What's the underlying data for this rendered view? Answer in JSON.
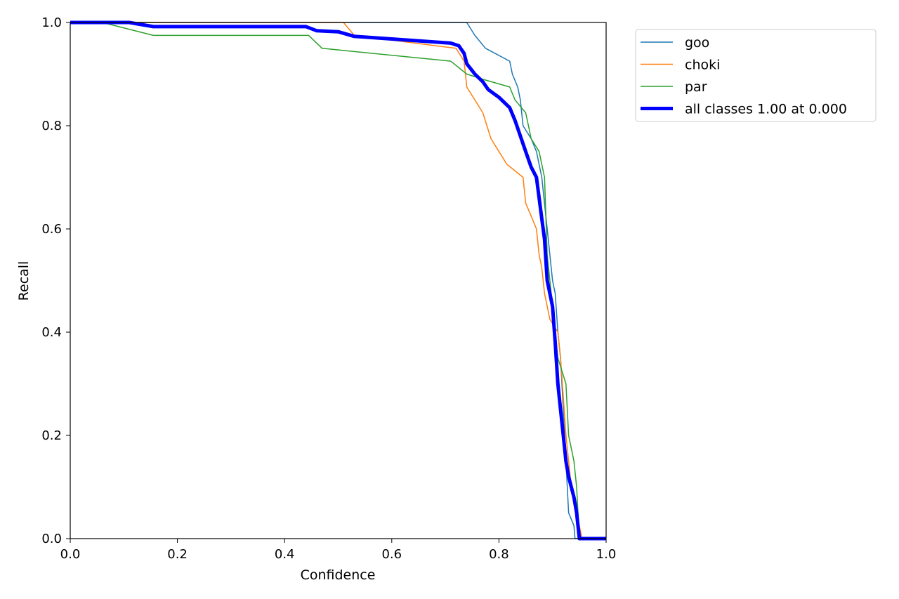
{
  "chart_data": {
    "type": "line",
    "title": "",
    "xlabel": "Confidence",
    "ylabel": "Recall",
    "xlim": [
      0.0,
      1.0
    ],
    "ylim": [
      0.0,
      1.0
    ],
    "xticks": [
      "0.0",
      "0.2",
      "0.4",
      "0.6",
      "0.8",
      "1.0"
    ],
    "yticks": [
      "0.0",
      "0.2",
      "0.4",
      "0.6",
      "0.8",
      "1.0"
    ],
    "grid": false,
    "legend_position": "outside-top-right",
    "series": [
      {
        "name": "goo",
        "color": "#1f77b4",
        "width": "thin",
        "points": [
          [
            0.0,
            1.0
          ],
          [
            0.74,
            1.0
          ],
          [
            0.755,
            0.975
          ],
          [
            0.775,
            0.95
          ],
          [
            0.82,
            0.925
          ],
          [
            0.825,
            0.9
          ],
          [
            0.835,
            0.875
          ],
          [
            0.84,
            0.85
          ],
          [
            0.845,
            0.8
          ],
          [
            0.86,
            0.775
          ],
          [
            0.87,
            0.75
          ],
          [
            0.88,
            0.7
          ],
          [
            0.89,
            0.6
          ],
          [
            0.895,
            0.55
          ],
          [
            0.9,
            0.5
          ],
          [
            0.905,
            0.475
          ],
          [
            0.91,
            0.4
          ],
          [
            0.915,
            0.35
          ],
          [
            0.92,
            0.25
          ],
          [
            0.925,
            0.15
          ],
          [
            0.93,
            0.05
          ],
          [
            0.94,
            0.025
          ],
          [
            0.942,
            0.0
          ],
          [
            1.0,
            0.0
          ]
        ]
      },
      {
        "name": "choki",
        "color": "#ff7f0e",
        "width": "thin",
        "points": [
          [
            0.0,
            1.0
          ],
          [
            0.51,
            1.0
          ],
          [
            0.53,
            0.975
          ],
          [
            0.72,
            0.95
          ],
          [
            0.735,
            0.925
          ],
          [
            0.74,
            0.875
          ],
          [
            0.77,
            0.825
          ],
          [
            0.785,
            0.775
          ],
          [
            0.8,
            0.75
          ],
          [
            0.815,
            0.725
          ],
          [
            0.845,
            0.7
          ],
          [
            0.85,
            0.65
          ],
          [
            0.86,
            0.625
          ],
          [
            0.87,
            0.6
          ],
          [
            0.875,
            0.55
          ],
          [
            0.88,
            0.525
          ],
          [
            0.885,
            0.475
          ],
          [
            0.895,
            0.425
          ],
          [
            0.91,
            0.4
          ],
          [
            0.915,
            0.35
          ],
          [
            0.92,
            0.275
          ],
          [
            0.925,
            0.2
          ],
          [
            0.935,
            0.1
          ],
          [
            0.945,
            0.05
          ],
          [
            0.95,
            0.025
          ],
          [
            0.955,
            0.0
          ],
          [
            1.0,
            0.0
          ]
        ]
      },
      {
        "name": "par",
        "color": "#2ca02c",
        "width": "thin",
        "points": [
          [
            0.0,
            1.0
          ],
          [
            0.06,
            1.0
          ],
          [
            0.155,
            0.975
          ],
          [
            0.445,
            0.975
          ],
          [
            0.47,
            0.95
          ],
          [
            0.71,
            0.925
          ],
          [
            0.74,
            0.9
          ],
          [
            0.77,
            0.89
          ],
          [
            0.82,
            0.875
          ],
          [
            0.83,
            0.85
          ],
          [
            0.85,
            0.825
          ],
          [
            0.855,
            0.8
          ],
          [
            0.86,
            0.775
          ],
          [
            0.875,
            0.75
          ],
          [
            0.88,
            0.725
          ],
          [
            0.885,
            0.7
          ],
          [
            0.89,
            0.55
          ],
          [
            0.9,
            0.45
          ],
          [
            0.91,
            0.35
          ],
          [
            0.925,
            0.3
          ],
          [
            0.93,
            0.2
          ],
          [
            0.94,
            0.15
          ],
          [
            0.945,
            0.1
          ],
          [
            0.95,
            0.0
          ],
          [
            1.0,
            0.0
          ]
        ]
      },
      {
        "name": "all classes 1.00 at 0.000",
        "color": "#0000ff",
        "width": "thick",
        "points": [
          [
            0.0,
            1.0
          ],
          [
            0.11,
            1.0
          ],
          [
            0.155,
            0.992
          ],
          [
            0.44,
            0.992
          ],
          [
            0.46,
            0.984
          ],
          [
            0.5,
            0.982
          ],
          [
            0.53,
            0.973
          ],
          [
            0.6,
            0.968
          ],
          [
            0.71,
            0.96
          ],
          [
            0.725,
            0.955
          ],
          [
            0.735,
            0.94
          ],
          [
            0.74,
            0.92
          ],
          [
            0.755,
            0.9
          ],
          [
            0.77,
            0.885
          ],
          [
            0.78,
            0.87
          ],
          [
            0.8,
            0.855
          ],
          [
            0.82,
            0.835
          ],
          [
            0.83,
            0.81
          ],
          [
            0.84,
            0.78
          ],
          [
            0.85,
            0.75
          ],
          [
            0.86,
            0.72
          ],
          [
            0.87,
            0.7
          ],
          [
            0.875,
            0.66
          ],
          [
            0.88,
            0.62
          ],
          [
            0.885,
            0.58
          ],
          [
            0.89,
            0.5
          ],
          [
            0.9,
            0.45
          ],
          [
            0.905,
            0.38
          ],
          [
            0.91,
            0.3
          ],
          [
            0.915,
            0.25
          ],
          [
            0.92,
            0.2
          ],
          [
            0.925,
            0.15
          ],
          [
            0.93,
            0.12
          ],
          [
            0.935,
            0.1
          ],
          [
            0.94,
            0.08
          ],
          [
            0.945,
            0.05
          ],
          [
            0.95,
            0.0
          ],
          [
            1.0,
            0.0
          ]
        ]
      }
    ]
  }
}
